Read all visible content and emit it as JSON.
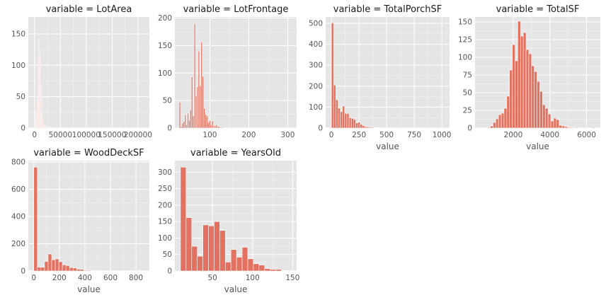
{
  "chart_data": [
    {
      "type": "bar",
      "title": "variable = LotArea",
      "xlabel": "",
      "xlim": [
        -12000,
        222000
      ],
      "ylim": [
        0,
        177
      ],
      "xticks": [
        0,
        50000,
        100000,
        150000,
        200000
      ],
      "xtick_labels": [
        "0",
        "50000",
        "100000",
        "150000",
        "200000"
      ],
      "yticks": [
        0,
        50,
        100,
        150
      ],
      "ytick_labels": [
        "0",
        "50",
        "100",
        "150"
      ],
      "bin_width": 1000,
      "bins": [
        [
          1000,
          5
        ],
        [
          2000,
          12
        ],
        [
          3000,
          25
        ],
        [
          4000,
          28
        ],
        [
          5000,
          40
        ],
        [
          6000,
          55
        ],
        [
          7000,
          105
        ],
        [
          8000,
          142
        ],
        [
          9000,
          128
        ],
        [
          10000,
          118
        ],
        [
          11000,
          86
        ],
        [
          12000,
          70
        ],
        [
          13000,
          43
        ],
        [
          14000,
          28
        ],
        [
          15000,
          18
        ],
        [
          16000,
          13
        ],
        [
          17000,
          8
        ],
        [
          18000,
          6
        ],
        [
          19000,
          5
        ],
        [
          20000,
          3
        ],
        [
          21000,
          3
        ],
        [
          22000,
          2
        ],
        [
          24000,
          2
        ],
        [
          26000,
          1
        ],
        [
          28000,
          1
        ],
        [
          31000,
          1
        ],
        [
          35000,
          1
        ],
        [
          45000,
          1
        ],
        [
          53000,
          1
        ],
        [
          63000,
          1
        ],
        [
          115000,
          1
        ],
        [
          159000,
          1
        ],
        [
          164000,
          1
        ],
        [
          215000,
          1
        ]
      ]
    },
    {
      "type": "bar",
      "title": "variable = LotFrontage",
      "xlabel": "",
      "xlim": [
        10,
        323
      ],
      "ylim": [
        0,
        202
      ],
      "xticks": [
        100,
        200,
        300
      ],
      "xtick_labels": [
        "100",
        "200",
        "300"
      ],
      "yticks": [
        0,
        50,
        100,
        150,
        200
      ],
      "ytick_labels": [
        "0",
        "50",
        "100",
        "150",
        "200"
      ],
      "bin_width": 3.5,
      "bins": [
        [
          21,
          47
        ],
        [
          24.5,
          3
        ],
        [
          28,
          9
        ],
        [
          31.5,
          12
        ],
        [
          35,
          24
        ],
        [
          38.5,
          6
        ],
        [
          42,
          27
        ],
        [
          45.5,
          14
        ],
        [
          49,
          33
        ],
        [
          52.5,
          93
        ],
        [
          56,
          22
        ],
        [
          59.5,
          190
        ],
        [
          63,
          59
        ],
        [
          66.5,
          75
        ],
        [
          70,
          140
        ],
        [
          73.5,
          77
        ],
        [
          77,
          157
        ],
        [
          80.5,
          94
        ],
        [
          84,
          36
        ],
        [
          87.5,
          25
        ],
        [
          91,
          22
        ],
        [
          94.5,
          10
        ],
        [
          98,
          14
        ],
        [
          101.5,
          6
        ],
        [
          105,
          13
        ],
        [
          108.5,
          5
        ],
        [
          112,
          4
        ],
        [
          115.5,
          6
        ],
        [
          119,
          3
        ],
        [
          122.5,
          3
        ],
        [
          126,
          1
        ],
        [
          129.5,
          2
        ],
        [
          134,
          1
        ],
        [
          141,
          1
        ],
        [
          150,
          1
        ],
        [
          160,
          1
        ],
        [
          174,
          1
        ],
        [
          182,
          1
        ],
        [
          313,
          1
        ]
      ]
    },
    {
      "type": "bar",
      "title": "variable = TotalPorchSF",
      "xlabel": "value",
      "xlim": [
        -52,
        1070
      ],
      "ylim": [
        0,
        530
      ],
      "xticks": [
        0,
        250,
        500,
        750,
        1000
      ],
      "xtick_labels": [
        "0",
        "250",
        "500",
        "750",
        "1000"
      ],
      "yticks": [
        0,
        100,
        200,
        300,
        400,
        500
      ],
      "ytick_labels": [
        "0",
        "100",
        "200",
        "300",
        "400",
        "500"
      ],
      "bin_width": 20,
      "bins": [
        [
          0,
          502
        ],
        [
          20,
          205
        ],
        [
          40,
          135
        ],
        [
          60,
          95
        ],
        [
          80,
          78
        ],
        [
          100,
          105
        ],
        [
          120,
          70
        ],
        [
          140,
          70
        ],
        [
          160,
          50
        ],
        [
          180,
          47
        ],
        [
          200,
          42
        ],
        [
          220,
          25
        ],
        [
          240,
          28
        ],
        [
          260,
          18
        ],
        [
          280,
          12
        ],
        [
          300,
          7
        ],
        [
          320,
          6
        ],
        [
          340,
          4
        ],
        [
          360,
          4
        ],
        [
          380,
          2
        ],
        [
          400,
          2
        ],
        [
          420,
          2
        ],
        [
          440,
          1
        ],
        [
          480,
          1
        ],
        [
          520,
          1
        ],
        [
          560,
          1
        ],
        [
          600,
          1
        ],
        [
          1000,
          1
        ]
      ]
    },
    {
      "type": "bar",
      "title": "variable = TotalSF",
      "xlabel": "value",
      "xlim": [
        -80,
        6750
      ],
      "ylim": [
        0,
        157
      ],
      "xticks": [
        2000,
        4000,
        6000
      ],
      "xtick_labels": [
        "2000",
        "4000",
        "6000"
      ],
      "yticks": [
        0,
        25,
        50,
        75,
        100,
        125,
        150
      ],
      "ytick_labels": [
        "0",
        "25",
        "50",
        "75",
        "100",
        "125",
        "150"
      ],
      "bin_width": 150,
      "bins": [
        [
          600,
          1
        ],
        [
          750,
          3
        ],
        [
          900,
          8
        ],
        [
          1050,
          13
        ],
        [
          1200,
          19
        ],
        [
          1350,
          21
        ],
        [
          1500,
          28
        ],
        [
          1650,
          45
        ],
        [
          1800,
          82
        ],
        [
          1950,
          118
        ],
        [
          2100,
          95
        ],
        [
          2250,
          151
        ],
        [
          2400,
          130
        ],
        [
          2550,
          135
        ],
        [
          2700,
          111
        ],
        [
          2850,
          105
        ],
        [
          3000,
          88
        ],
        [
          3150,
          80
        ],
        [
          3300,
          66
        ],
        [
          3450,
          52
        ],
        [
          3600,
          33
        ],
        [
          3750,
          28
        ],
        [
          3900,
          20
        ],
        [
          4050,
          10
        ],
        [
          4200,
          14
        ],
        [
          4350,
          12
        ],
        [
          4500,
          4
        ],
        [
          4650,
          3
        ],
        [
          4800,
          2
        ],
        [
          4950,
          1
        ],
        [
          5100,
          1
        ],
        [
          5400,
          1
        ],
        [
          6300,
          1
        ]
      ]
    },
    {
      "type": "bar",
      "title": "variable = WoodDeckSF",
      "xlabel": "value",
      "xlim": [
        -43,
        905
      ],
      "ylim": [
        0,
        810
      ],
      "xticks": [
        0,
        200,
        400,
        600,
        800
      ],
      "xtick_labels": [
        "0",
        "200",
        "400",
        "600",
        "800"
      ],
      "yticks": [
        0,
        200,
        400,
        600,
        800
      ],
      "ytick_labels": [
        "0",
        "200",
        "400",
        "600",
        "800"
      ],
      "bin_width": 28,
      "bins": [
        [
          0,
          762
        ],
        [
          28,
          28
        ],
        [
          56,
          28
        ],
        [
          84,
          70
        ],
        [
          112,
          125
        ],
        [
          140,
          82
        ],
        [
          168,
          88
        ],
        [
          196,
          68
        ],
        [
          224,
          45
        ],
        [
          252,
          40
        ],
        [
          280,
          25
        ],
        [
          308,
          22
        ],
        [
          336,
          14
        ],
        [
          364,
          12
        ],
        [
          392,
          5
        ],
        [
          420,
          5
        ],
        [
          448,
          2
        ],
        [
          476,
          2
        ],
        [
          504,
          2
        ],
        [
          532,
          1
        ],
        [
          560,
          1
        ],
        [
          616,
          1
        ],
        [
          728,
          1
        ],
        [
          840,
          1
        ]
      ]
    },
    {
      "type": "bar",
      "title": "variable = YearsOld",
      "xlabel": "value",
      "xlim": [
        3,
        155
      ],
      "ylim": [
        0,
        335
      ],
      "xticks": [
        50,
        100,
        150
      ],
      "xtick_labels": [
        "50",
        "100",
        "150"
      ],
      "yticks": [
        0,
        50,
        100,
        150,
        200,
        250,
        300
      ],
      "ytick_labels": [
        "0",
        "50",
        "100",
        "150",
        "200",
        "250",
        "300"
      ],
      "bin_width": 7,
      "bins": [
        [
          10,
          315
        ],
        [
          17,
          162
        ],
        [
          24,
          75
        ],
        [
          31,
          45
        ],
        [
          38,
          140
        ],
        [
          45,
          137
        ],
        [
          52,
          150
        ],
        [
          59,
          123
        ],
        [
          66,
          27
        ],
        [
          73,
          65
        ],
        [
          80,
          42
        ],
        [
          87,
          72
        ],
        [
          94,
          37
        ],
        [
          101,
          22
        ],
        [
          108,
          18
        ],
        [
          115,
          7
        ],
        [
          122,
          5
        ],
        [
          129,
          5
        ],
        [
          136,
          1
        ],
        [
          143,
          1
        ]
      ]
    }
  ],
  "style": {
    "panel_bg": "#e5e5e5",
    "grid_color": "#ffffff",
    "bar_fill": "#e24a33",
    "bar_opacity": 0.75,
    "bar_edge": "#ffffff"
  }
}
